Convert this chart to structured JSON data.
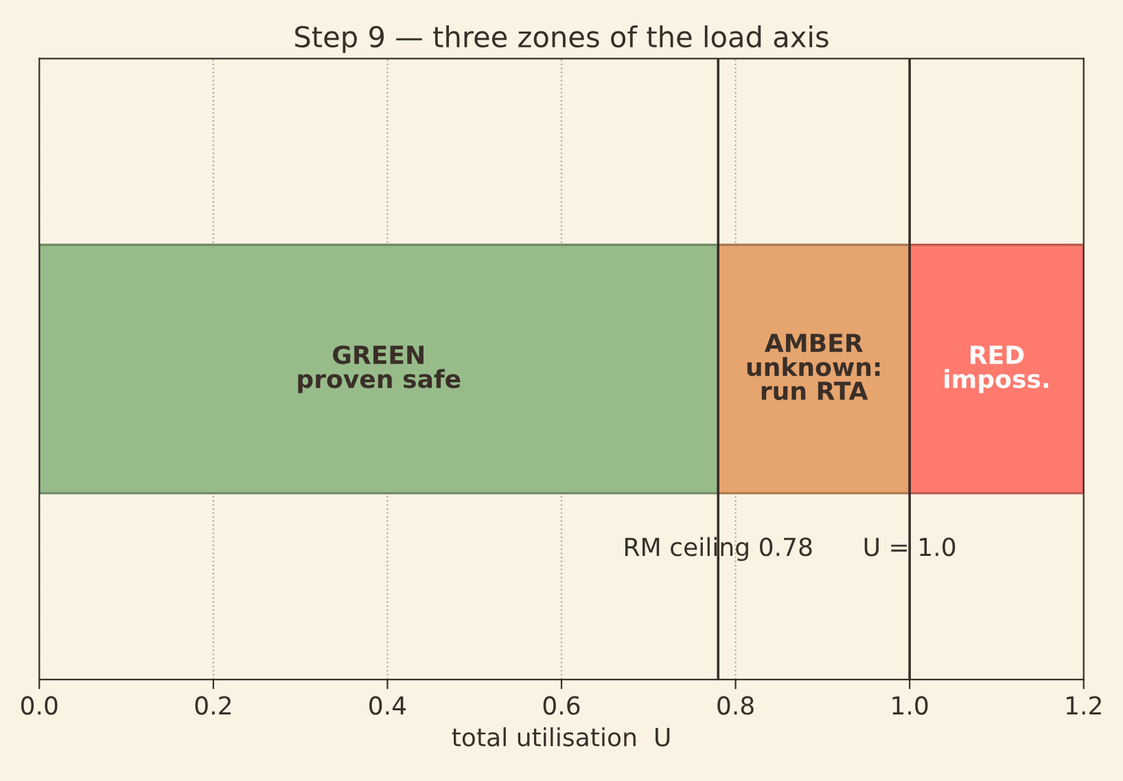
{
  "chart_data": {
    "type": "bar",
    "title": "Step 9 — three zones of the load axis",
    "xlabel": "total utilisation  U",
    "orientation": "horizontal",
    "stacked": true,
    "categories": [
      null
    ],
    "series": [
      {
        "name": "GREEN\nproven safe",
        "color": "#97bc8a",
        "values": [
          0.78
        ]
      },
      {
        "name": "AMBER\nunknown:\nrun RTA",
        "color": "#e6a46e",
        "values": [
          0.22
        ]
      },
      {
        "name": "RED\nimposs.",
        "color": "#fe7a6f",
        "values": [
          0.2
        ]
      }
    ],
    "xlim": [
      0,
      1.2
    ],
    "xticks": [
      {
        "value": 0,
        "label": "0.0"
      },
      0.2,
      0.4,
      0.6,
      0.8,
      {
        "value": 1,
        "label": "1.0"
      },
      1.2
    ],
    "ref_lines": [
      {
        "axis": "x",
        "value": 0.78,
        "label": "RM ceiling 0.78",
        "color": "#3a2f28"
      },
      {
        "axis": "x",
        "value": 1.0,
        "label": "U = 1.0",
        "color": "#3a2f28"
      }
    ],
    "grid": "x",
    "legend": false
  }
}
